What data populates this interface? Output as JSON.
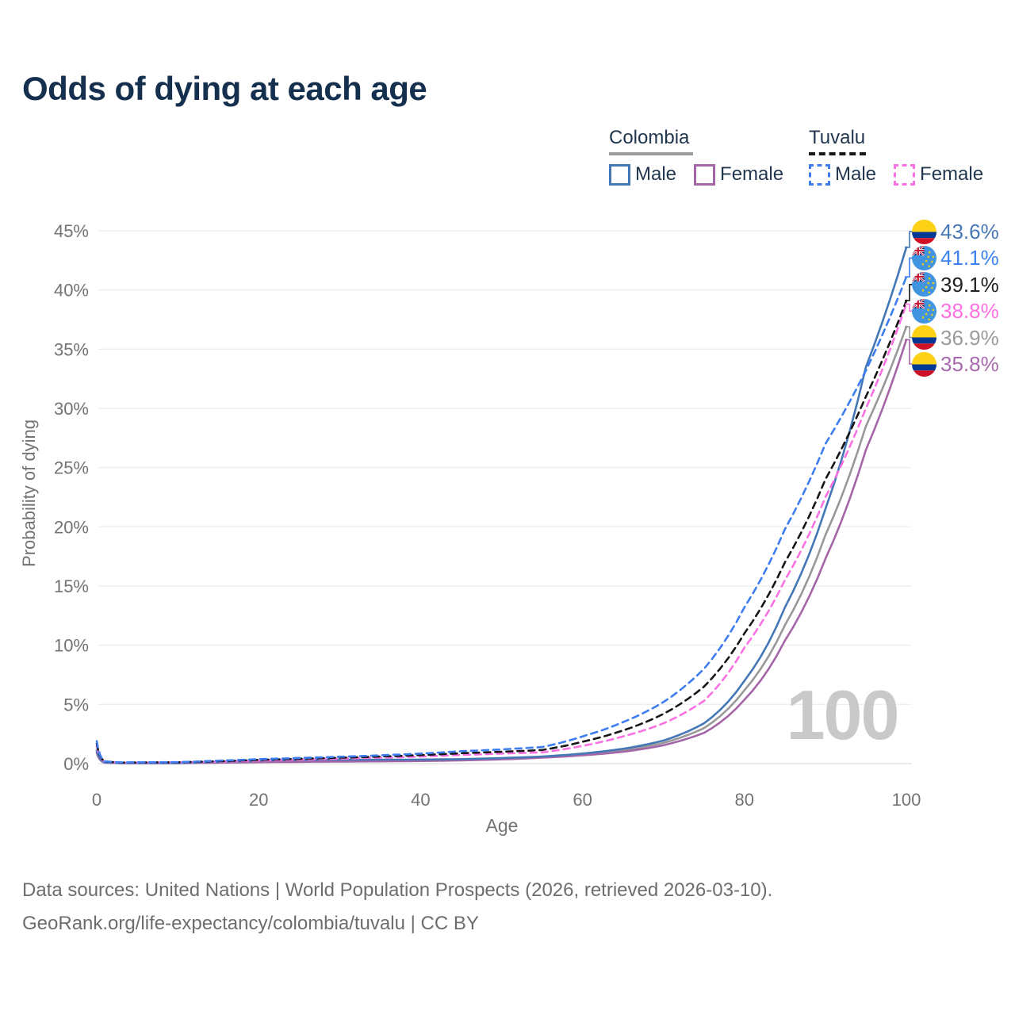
{
  "title": "Odds of dying at each age",
  "legend": {
    "groups": [
      {
        "label": "Colombia",
        "line_style": "solid",
        "underline_color": "#9c9c9c",
        "items": [
          {
            "label": "Male",
            "color": "#4377B6"
          },
          {
            "label": "Female",
            "color": "#A566A8"
          }
        ]
      },
      {
        "label": "Tuvalu",
        "line_style": "dashed",
        "underline_color": "#161616",
        "items": [
          {
            "label": "Male",
            "color": "#3D7DF0"
          },
          {
            "label": "Female",
            "color": "#FB71E3"
          }
        ]
      }
    ]
  },
  "chart_data": {
    "type": "line",
    "title": "Odds of dying at each age",
    "xlabel": "Age",
    "ylabel": "Probability of dying",
    "x_ticks": [
      0,
      20,
      40,
      60,
      80,
      100
    ],
    "y_ticks": [
      0,
      5,
      10,
      15,
      20,
      25,
      30,
      35,
      40,
      45
    ],
    "y_tick_suffix": "%",
    "xlim": [
      0,
      100
    ],
    "ylim": [
      0,
      45
    ],
    "grid": "horizontal",
    "legend_position": "top-right",
    "annotation": "100",
    "x": [
      0,
      1,
      3,
      10,
      15,
      20,
      25,
      30,
      35,
      40,
      45,
      50,
      55,
      60,
      65,
      70,
      75,
      80,
      85,
      90,
      95,
      100
    ],
    "series": [
      {
        "name": "Colombia Male",
        "country": "Colombia",
        "sex": "Male",
        "color": "#4377B6",
        "dashed": false,
        "flag": "colombia",
        "end_label": "43.6%",
        "end_value": 43.6,
        "label_color": "#4678B8",
        "values": [
          1.1,
          0.1,
          0.05,
          0.05,
          0.15,
          0.27,
          0.32,
          0.33,
          0.33,
          0.34,
          0.38,
          0.47,
          0.6,
          0.85,
          1.25,
          1.95,
          3.4,
          7.0,
          13.2,
          21.5,
          33.5,
          43.6
        ]
      },
      {
        "name": "Colombia Female",
        "country": "Colombia",
        "sex": "Female",
        "color": "#A566A8",
        "dashed": false,
        "flag": "colombia",
        "end_label": "35.8%",
        "end_value": 35.8,
        "label_color": "#A869AE",
        "values": [
          0.9,
          0.08,
          0.04,
          0.04,
          0.08,
          0.12,
          0.15,
          0.17,
          0.19,
          0.22,
          0.27,
          0.36,
          0.5,
          0.7,
          1.0,
          1.55,
          2.6,
          5.4,
          10.4,
          17.3,
          26.5,
          35.8
        ]
      },
      {
        "name": "Colombia Both sexes",
        "country": "Colombia",
        "sex": "Both",
        "color": "#989898",
        "dashed": false,
        "flag": "colombia",
        "end_label": "36.9%",
        "end_value": 36.9,
        "label_color": "#9B9B9B",
        "values": [
          1.0,
          0.09,
          0.05,
          0.05,
          0.11,
          0.2,
          0.24,
          0.25,
          0.26,
          0.28,
          0.32,
          0.42,
          0.55,
          0.78,
          1.12,
          1.75,
          3.0,
          6.2,
          11.7,
          19.3,
          28.5,
          36.9
        ]
      },
      {
        "name": "Tuvalu Male",
        "country": "Tuvalu",
        "sex": "Male",
        "color": "#3D7DF0",
        "dashed": true,
        "flag": "tuvalu",
        "end_label": "41.1%",
        "end_value": 41.1,
        "label_color": "#3D82F2",
        "values": [
          1.9,
          0.2,
          0.1,
          0.13,
          0.25,
          0.38,
          0.48,
          0.58,
          0.7,
          0.85,
          1.05,
          1.2,
          1.4,
          2.3,
          3.5,
          5.2,
          8.0,
          13.2,
          19.8,
          27.0,
          33.2,
          41.1
        ]
      },
      {
        "name": "Tuvalu Female",
        "country": "Tuvalu",
        "sex": "Female",
        "color": "#FB71E3",
        "dashed": true,
        "flag": "tuvalu",
        "end_label": "38.8%",
        "end_value": 38.8,
        "label_color": "#FF70E2",
        "values": [
          1.5,
          0.16,
          0.08,
          0.1,
          0.16,
          0.26,
          0.34,
          0.42,
          0.5,
          0.6,
          0.73,
          0.85,
          0.95,
          1.5,
          2.3,
          3.4,
          5.3,
          9.8,
          15.5,
          22.5,
          30.0,
          38.8
        ]
      },
      {
        "name": "Tuvalu Both sexes",
        "country": "Tuvalu",
        "sex": "Both",
        "color": "#161616",
        "dashed": true,
        "flag": "tuvalu",
        "end_label": "39.1%",
        "end_value": 39.1,
        "label_color": "#1F1F1F",
        "values": [
          1.7,
          0.18,
          0.09,
          0.11,
          0.2,
          0.32,
          0.41,
          0.5,
          0.6,
          0.72,
          0.88,
          1.0,
          1.15,
          1.85,
          2.8,
          4.2,
          6.5,
          11.0,
          17.0,
          24.0,
          31.0,
          39.1
        ]
      }
    ]
  },
  "flags": {
    "colombia": {
      "yellow": "#FCD116",
      "blue": "#003893",
      "red": "#CE1126"
    },
    "tuvalu": {
      "field": "#4195E0",
      "navy": "#012169",
      "white": "#FFFFFF",
      "red": "#C8102E",
      "star": "#FFD100"
    }
  },
  "footer": {
    "line1": "Data sources: United Nations | World Population Prospects (2026, retrieved 2026-03-10).",
    "line2": "GeoRank.org/life-expectancy/colombia/tuvalu | CC BY"
  }
}
